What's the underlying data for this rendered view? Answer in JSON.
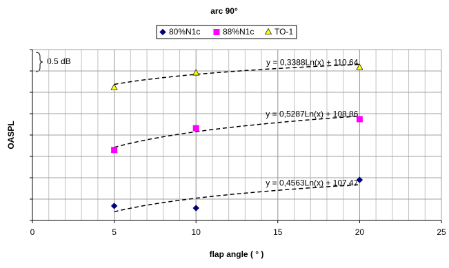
{
  "chart_data": {
    "type": "scatter",
    "title": "arc 90°",
    "x_label": "flap angle ( ° )",
    "y_label": "OASPL",
    "annotation": "0.5 dB",
    "xlim": [
      0,
      25
    ],
    "xticks": [
      0,
      5,
      10,
      15,
      20,
      25
    ],
    "ylim": [
      108,
      112
    ],
    "yticks": [
      108,
      108.5,
      109,
      109.5,
      110,
      110.5,
      111,
      111.5,
      112
    ],
    "grid": true,
    "series": [
      {
        "name": "80%N1c",
        "color": "#000080",
        "marker": "diamond",
        "x": [
          5,
          10,
          20
        ],
        "values": [
          108.34,
          108.29,
          108.95
        ],
        "trend_label": "y = 0,4563Ln(x) + 107,47",
        "trend": {
          "slope": 0.4563,
          "intercept": 107.47
        }
      },
      {
        "name": "88%N1c",
        "color": "#ff00ff",
        "marker": "square",
        "x": [
          5,
          10,
          20
        ],
        "values": [
          109.65,
          110.16,
          110.37
        ],
        "trend_label": "y = 0,5287Ln(x) + 108,86",
        "trend": {
          "slope": 0.5287,
          "intercept": 108.86
        }
      },
      {
        "name": "TO-1",
        "color": "#ffff00",
        "marker": "triangle",
        "x": [
          5,
          10,
          20
        ],
        "values": [
          111.11,
          111.45,
          111.58
        ],
        "trend_label": "y = 0,3388Ln(x) + 110,64",
        "trend": {
          "slope": 0.3388,
          "intercept": 110.64
        }
      }
    ]
  }
}
